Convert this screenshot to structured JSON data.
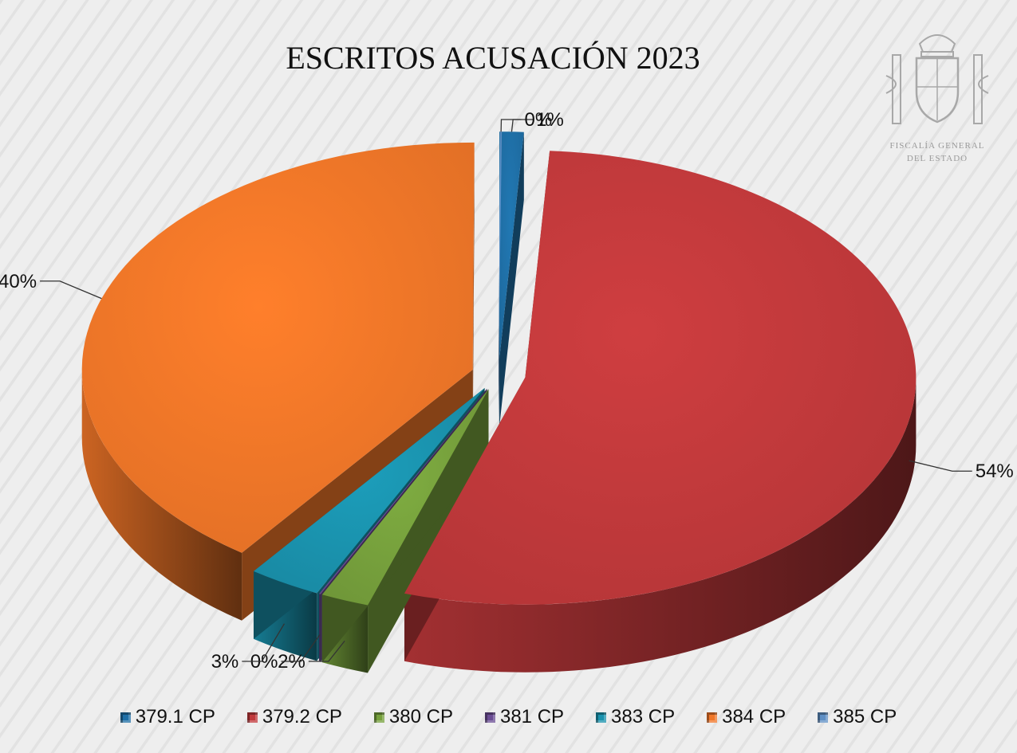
{
  "emblem": {
    "line1": "FISCALÍA GENERAL",
    "line2": "DEL ESTADO"
  },
  "chart_data": {
    "type": "pie",
    "title": "ESCRITOS ACUSACIÓN 2023",
    "categories": [
      "379.1 CP",
      "379.2 CP",
      "380 CP",
      "381 CP",
      "383 CP",
      "384 CP",
      "385 CP"
    ],
    "values": [
      1,
      54,
      2,
      0,
      3,
      40,
      0
    ],
    "labels": [
      "1%",
      "54%",
      "2%",
      "0%",
      "3%",
      "40%",
      "0%"
    ],
    "colors": [
      "#1f6fa6",
      "#c0393b",
      "#76a03c",
      "#6a4c93",
      "#1a92ad",
      "#f07628",
      "#5f8fc4"
    ],
    "legend_position": "bottom",
    "style": "3d-exploded"
  }
}
